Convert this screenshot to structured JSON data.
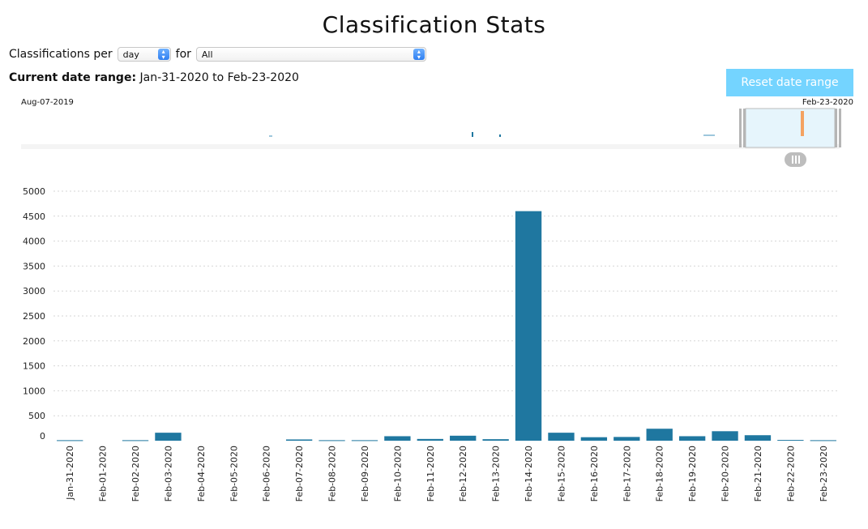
{
  "page": {
    "title": "Classification Stats",
    "per_label": "Classifications per",
    "per_value": "day",
    "for_label": "for",
    "for_value": "All",
    "range_label": "Current date range:",
    "range_value": "Jan-31-2020 to Feb-23-2020",
    "reset_label": "Reset date range",
    "overview_start": "Aug-07-2019",
    "overview_end": "Feb-23-2020"
  },
  "colors": {
    "bar": "#1f77a0",
    "overview_highlight": "#f4a261",
    "brush_fill": "#e6f5fc",
    "reset_button": "#74d4ff"
  },
  "chart_data": {
    "type": "bar",
    "title": "",
    "xlabel": "",
    "ylabel": "",
    "ylim": [
      0,
      5000
    ],
    "yticks": [
      0,
      500,
      1000,
      1500,
      2000,
      2500,
      3000,
      3500,
      4000,
      4500,
      5000
    ],
    "grid": true,
    "categories": [
      "Jan-31-2020",
      "Feb-01-2020",
      "Feb-02-2020",
      "Feb-03-2020",
      "Feb-04-2020",
      "Feb-05-2020",
      "Feb-06-2020",
      "Feb-07-2020",
      "Feb-08-2020",
      "Feb-09-2020",
      "Feb-10-2020",
      "Feb-11-2020",
      "Feb-12-2020",
      "Feb-13-2020",
      "Feb-14-2020",
      "Feb-15-2020",
      "Feb-16-2020",
      "Feb-17-2020",
      "Feb-18-2020",
      "Feb-19-2020",
      "Feb-20-2020",
      "Feb-21-2020",
      "Feb-22-2020",
      "Feb-23-2020"
    ],
    "values": [
      10,
      0,
      10,
      160,
      0,
      0,
      0,
      25,
      10,
      10,
      90,
      35,
      100,
      30,
      4600,
      160,
      70,
      75,
      240,
      90,
      190,
      110,
      15,
      10
    ]
  }
}
